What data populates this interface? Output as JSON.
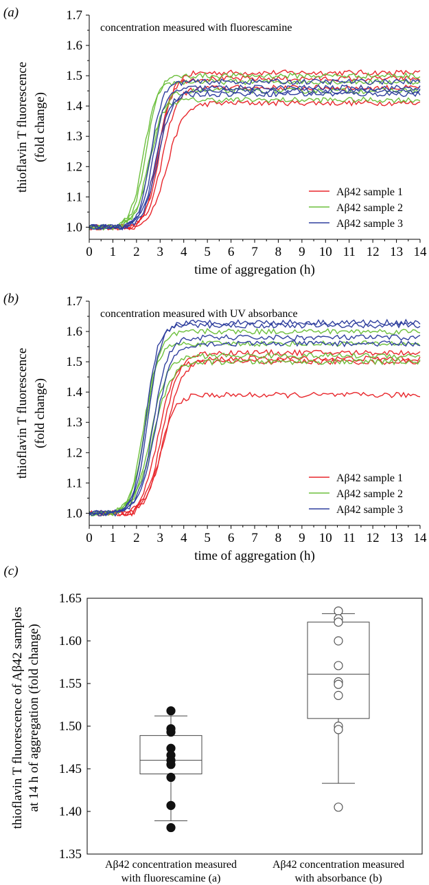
{
  "colors": {
    "sample1": "#e8262b",
    "sample2": "#6cbf3c",
    "sample3": "#2f3f9e",
    "axis": "#000000",
    "box": "#444444"
  },
  "chart_data": [
    {
      "panel": "(a)",
      "panel_letter": "a",
      "type": "line",
      "annotation": "concentration measured with fluorescamine",
      "xlabel": "time of aggregation (h)",
      "ylabel": [
        "thioflavin T fluorescence",
        "(fold change)"
      ],
      "xlim": [
        0,
        14
      ],
      "ylim": [
        0.96,
        1.7
      ],
      "xticks": [
        0,
        1,
        2,
        3,
        4,
        5,
        6,
        7,
        8,
        9,
        10,
        11,
        12,
        13,
        14
      ],
      "yticks": [
        1.0,
        1.1,
        1.2,
        1.3,
        1.4,
        1.5,
        1.6,
        1.7
      ],
      "legend_position": "right",
      "series": [
        {
          "name": "Aβ42 sample 1",
          "color_key": "sample1",
          "curves": [
            {
              "t_half": 2.6,
              "k": 1.6,
              "plateau": 1.51,
              "lag_end": 1.9
            },
            {
              "t_half": 2.9,
              "k": 1.3,
              "plateau": 1.41,
              "lag_end": 2.1
            },
            {
              "t_half": 2.7,
              "k": 1.5,
              "plateau": 1.46,
              "lag_end": 2.0
            },
            {
              "t_half": 2.5,
              "k": 1.7,
              "plateau": 1.49,
              "lag_end": 1.8
            }
          ]
        },
        {
          "name": "Aβ42 sample 2",
          "color_key": "sample2",
          "curves": [
            {
              "t_half": 1.9,
              "k": 1.7,
              "plateau": 1.48,
              "lag_end": 1.3
            },
            {
              "t_half": 2.1,
              "k": 1.6,
              "plateau": 1.42,
              "lag_end": 1.4
            },
            {
              "t_half": 2.0,
              "k": 1.7,
              "plateau": 1.5,
              "lag_end": 1.3
            },
            {
              "t_half": 2.2,
              "k": 1.5,
              "plateau": 1.45,
              "lag_end": 1.5
            }
          ]
        },
        {
          "name": "Aβ42 sample 3",
          "color_key": "sample3",
          "curves": [
            {
              "t_half": 2.3,
              "k": 1.7,
              "plateau": 1.46,
              "lag_end": 1.6
            },
            {
              "t_half": 2.4,
              "k": 1.6,
              "plateau": 1.44,
              "lag_end": 1.7
            },
            {
              "t_half": 2.2,
              "k": 1.8,
              "plateau": 1.48,
              "lag_end": 1.5
            },
            {
              "t_half": 2.5,
              "k": 1.5,
              "plateau": 1.45,
              "lag_end": 1.8
            }
          ]
        }
      ]
    },
    {
      "panel": "(b)",
      "panel_letter": "b",
      "type": "line",
      "annotation": "concentration measured with UV absorbance",
      "xlabel": "time of aggregation (h)",
      "ylabel": [
        "thioflavin T fluorescence",
        "(fold change)"
      ],
      "xlim": [
        0,
        14
      ],
      "ylim": [
        0.96,
        1.7
      ],
      "xticks": [
        0,
        1,
        2,
        3,
        4,
        5,
        6,
        7,
        8,
        9,
        10,
        11,
        12,
        13,
        14
      ],
      "yticks": [
        1.0,
        1.1,
        1.2,
        1.3,
        1.4,
        1.5,
        1.6,
        1.7
      ],
      "legend_position": "right",
      "series": [
        {
          "name": "Aβ42 sample 1",
          "color_key": "sample1",
          "curves": [
            {
              "t_half": 2.6,
              "k": 1.5,
              "plateau": 1.39,
              "lag_end": 1.9
            },
            {
              "t_half": 2.8,
              "k": 1.2,
              "plateau": 1.51,
              "lag_end": 2.0
            },
            {
              "t_half": 2.7,
              "k": 1.3,
              "plateau": 1.53,
              "lag_end": 1.9
            },
            {
              "t_half": 2.5,
              "k": 1.4,
              "plateau": 1.5,
              "lag_end": 1.8
            }
          ]
        },
        {
          "name": "Aβ42 sample 2",
          "color_key": "sample2",
          "curves": [
            {
              "t_half": 1.9,
              "k": 1.6,
              "plateau": 1.56,
              "lag_end": 1.1
            },
            {
              "t_half": 2.2,
              "k": 1.3,
              "plateau": 1.52,
              "lag_end": 1.3
            },
            {
              "t_half": 2.0,
              "k": 1.5,
              "plateau": 1.6,
              "lag_end": 1.2
            },
            {
              "t_half": 2.3,
              "k": 1.2,
              "plateau": 1.5,
              "lag_end": 1.4
            }
          ]
        },
        {
          "name": "Aβ42 sample 3",
          "color_key": "sample3",
          "curves": [
            {
              "t_half": 2.1,
              "k": 1.7,
              "plateau": 1.63,
              "lag_end": 1.0
            },
            {
              "t_half": 2.3,
              "k": 1.5,
              "plateau": 1.58,
              "lag_end": 1.2
            },
            {
              "t_half": 2.0,
              "k": 1.8,
              "plateau": 1.62,
              "lag_end": 1.0
            },
            {
              "t_half": 2.4,
              "k": 1.4,
              "plateau": 1.56,
              "lag_end": 1.3
            }
          ]
        }
      ]
    },
    {
      "panel": "(c)",
      "panel_letter": "c",
      "type": "box",
      "ylabel": [
        "thioflavin T fluorescence of Aβ42 samples",
        "at 14 h of aggregation (fold change)"
      ],
      "ylim": [
        1.35,
        1.65
      ],
      "yticks": [
        1.35,
        1.4,
        1.45,
        1.5,
        1.55,
        1.6,
        1.65
      ],
      "categories": [
        [
          "Aβ42 concentration measured",
          "with fluorescamine (a)"
        ],
        [
          "Aβ42 concentration measured",
          "with absorbance (b)"
        ]
      ],
      "boxes": [
        {
          "q1": 1.444,
          "median": 1.46,
          "q3": 1.489,
          "whisker_low": 1.389,
          "whisker_high": 1.512,
          "marker": "filled",
          "points": [
            1.518,
            1.497,
            1.493,
            1.474,
            1.466,
            1.46,
            1.455,
            1.44,
            1.407,
            1.381
          ]
        },
        {
          "q1": 1.509,
          "median": 1.561,
          "q3": 1.622,
          "whisker_low": 1.433,
          "whisker_high": 1.632,
          "marker": "open",
          "points": [
            1.635,
            1.626,
            1.622,
            1.6,
            1.571,
            1.552,
            1.549,
            1.536,
            1.5,
            1.496,
            1.405
          ]
        }
      ]
    }
  ]
}
